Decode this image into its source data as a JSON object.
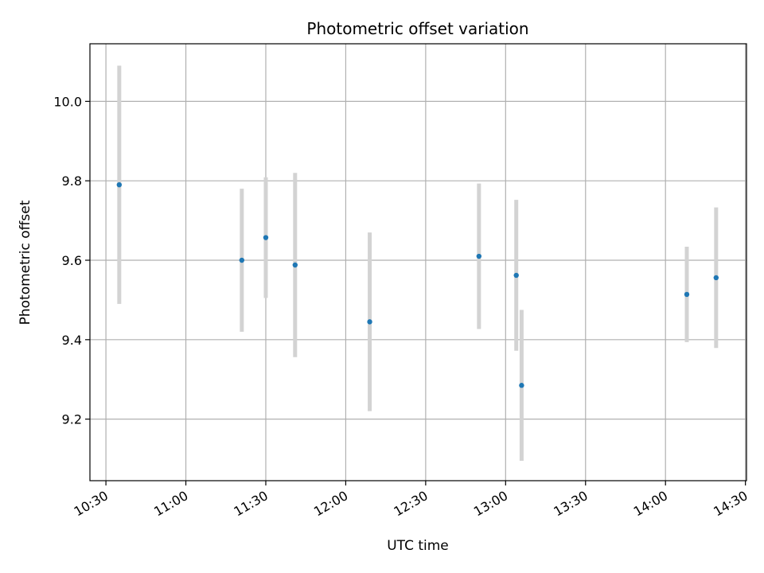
{
  "chart_data": {
    "type": "scatter",
    "title": "Photometric offset variation",
    "xlabel": "UTC time",
    "ylabel": "Photometric offset",
    "grid": true,
    "x_ticks": [
      "10:30",
      "11:00",
      "11:30",
      "12:00",
      "12:30",
      "13:00",
      "13:30",
      "14:00",
      "14:30"
    ],
    "y_ticks": [
      "9.2",
      "9.4",
      "9.6",
      "9.8",
      "10.0"
    ],
    "xlim": [
      "10:24",
      "14:30"
    ],
    "ylim": [
      9.045,
      10.145
    ],
    "series": [
      {
        "marker_color": "#1f77b4",
        "errorbar_color": "#d3d3d3",
        "points": [
          {
            "x": "10:35",
            "y": 9.79,
            "err": 0.3
          },
          {
            "x": "11:21",
            "y": 9.6,
            "err": 0.18
          },
          {
            "x": "11:30",
            "y": 9.657,
            "err": 0.152
          },
          {
            "x": "11:41",
            "y": 9.588,
            "err": 0.232
          },
          {
            "x": "12:09",
            "y": 9.445,
            "err": 0.225
          },
          {
            "x": "12:50",
            "y": 9.61,
            "err": 0.183
          },
          {
            "x": "13:04",
            "y": 9.562,
            "err": 0.19
          },
          {
            "x": "13:06",
            "y": 9.285,
            "err": 0.19
          },
          {
            "x": "14:08",
            "y": 9.514,
            "err": 0.12
          },
          {
            "x": "14:19",
            "y": 9.556,
            "err": 0.177
          }
        ]
      }
    ]
  }
}
